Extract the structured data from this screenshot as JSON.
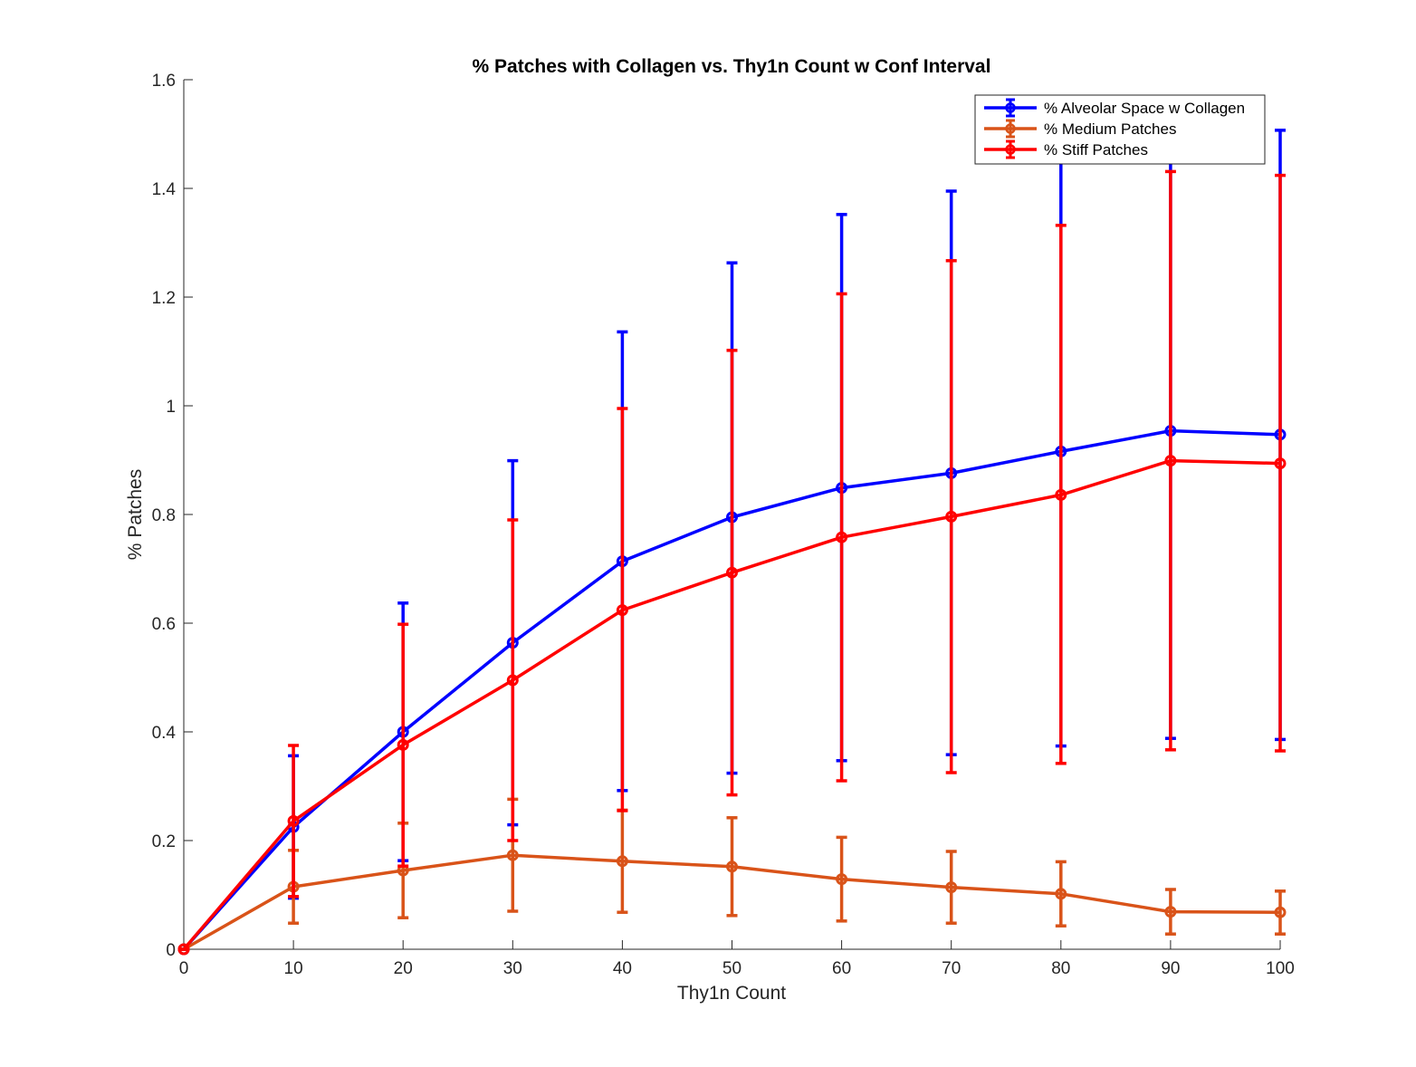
{
  "chart_data": {
    "type": "line",
    "title": "% Patches with Collagen vs. Thy1n Count w Conf Interval",
    "xlabel": "Thy1n Count",
    "ylabel": "% Patches",
    "xlim": [
      0,
      100
    ],
    "ylim": [
      0,
      1.6
    ],
    "xticks": [
      0,
      10,
      20,
      30,
      40,
      50,
      60,
      70,
      80,
      90,
      100
    ],
    "yticks": [
      0,
      0.2,
      0.4,
      0.6,
      0.8,
      1,
      1.2,
      1.4,
      1.6
    ],
    "xtick_labels": [
      "0",
      "10",
      "20",
      "30",
      "40",
      "50",
      "60",
      "70",
      "80",
      "90",
      "100"
    ],
    "ytick_labels": [
      "0",
      "0.2",
      "0.4",
      "0.6",
      "0.8",
      "1",
      "1.2",
      "1.4",
      "1.6"
    ],
    "grid": false,
    "legend_position": "top-right",
    "x": [
      0,
      10,
      20,
      30,
      40,
      50,
      60,
      70,
      80,
      90,
      100
    ],
    "series": [
      {
        "name": "% Alveolar Space w Collagen",
        "color": "#0000ff",
        "values": [
          0,
          0.225,
          0.4,
          0.564,
          0.714,
          0.795,
          0.849,
          0.876,
          0.916,
          0.954,
          0.947
        ],
        "lower": [
          0,
          0.094,
          0.163,
          0.229,
          0.292,
          0.324,
          0.347,
          0.358,
          0.374,
          0.388,
          0.386
        ],
        "upper": [
          0,
          0.356,
          0.637,
          0.899,
          1.136,
          1.263,
          1.352,
          1.395,
          1.458,
          1.52,
          1.507
        ]
      },
      {
        "name": "% Medium Patches",
        "color": "#d95319",
        "values": [
          0,
          0.115,
          0.145,
          0.173,
          0.162,
          0.152,
          0.129,
          0.114,
          0.102,
          0.069,
          0.068
        ],
        "lower": [
          0,
          0.048,
          0.058,
          0.07,
          0.068,
          0.062,
          0.052,
          0.048,
          0.043,
          0.028,
          0.028
        ],
        "upper": [
          0,
          0.182,
          0.232,
          0.276,
          0.256,
          0.242,
          0.206,
          0.18,
          0.161,
          0.11,
          0.107
        ]
      },
      {
        "name": "% Stiff Patches",
        "color": "#ff0000",
        "values": [
          0,
          0.236,
          0.376,
          0.495,
          0.624,
          0.693,
          0.758,
          0.796,
          0.836,
          0.899,
          0.894
        ],
        "lower": [
          0,
          0.097,
          0.153,
          0.2,
          0.255,
          0.284,
          0.31,
          0.325,
          0.342,
          0.367,
          0.365
        ],
        "upper": [
          0,
          0.375,
          0.598,
          0.79,
          0.995,
          1.102,
          1.206,
          1.267,
          1.332,
          1.431,
          1.424
        ]
      }
    ]
  }
}
